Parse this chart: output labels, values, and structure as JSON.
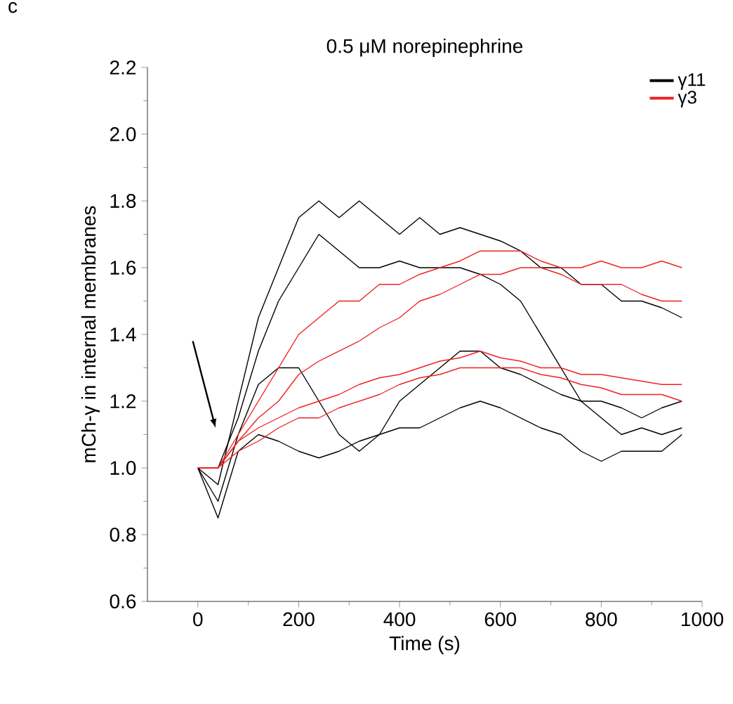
{
  "chart_data": {
    "type": "line",
    "title": "0.5 μM norepinephrine",
    "xlabel": "Time (s)",
    "ylabel": "mCh-γ in internal membranes",
    "annotations": [
      "c"
    ],
    "x": [
      0,
      40,
      80,
      120,
      160,
      200,
      240,
      280,
      320,
      360,
      400,
      440,
      480,
      520,
      560,
      600,
      640,
      680,
      720,
      760,
      800,
      840,
      880,
      920,
      960
    ],
    "series": [
      {
        "name": "γ11",
        "color": "#000000",
        "values": [
          1.0,
          0.95,
          1.2,
          1.45,
          1.6,
          1.75,
          1.8,
          1.75,
          1.8,
          1.75,
          1.7,
          1.75,
          1.7,
          1.72,
          1.7,
          1.68,
          1.65,
          1.6,
          1.6,
          1.55,
          1.55,
          1.5,
          1.5,
          1.48,
          1.45
        ]
      },
      {
        "color": "#000000",
        "values": [
          1.0,
          1.0,
          1.15,
          1.35,
          1.5,
          1.6,
          1.7,
          1.65,
          1.6,
          1.6,
          1.62,
          1.6,
          1.6,
          1.6,
          1.58,
          1.55,
          1.5,
          1.4,
          1.3,
          1.2,
          1.15,
          1.1,
          1.12,
          1.1,
          1.12
        ]
      },
      {
        "color": "#000000",
        "values": [
          1.0,
          0.9,
          1.1,
          1.25,
          1.3,
          1.3,
          1.2,
          1.1,
          1.05,
          1.1,
          1.2,
          1.25,
          1.3,
          1.35,
          1.35,
          1.3,
          1.28,
          1.25,
          1.22,
          1.2,
          1.2,
          1.18,
          1.15,
          1.18,
          1.2
        ]
      },
      {
        "color": "#000000",
        "values": [
          1.0,
          0.85,
          1.05,
          1.1,
          1.08,
          1.05,
          1.03,
          1.05,
          1.08,
          1.1,
          1.12,
          1.12,
          1.15,
          1.18,
          1.2,
          1.18,
          1.15,
          1.12,
          1.1,
          1.05,
          1.02,
          1.05,
          1.05,
          1.05,
          1.1
        ]
      },
      {
        "name": "γ3",
        "color": "#ee2222",
        "values": [
          1.0,
          1.0,
          1.1,
          1.2,
          1.3,
          1.4,
          1.45,
          1.5,
          1.5,
          1.55,
          1.55,
          1.58,
          1.6,
          1.62,
          1.65,
          1.65,
          1.65,
          1.62,
          1.6,
          1.6,
          1.62,
          1.6,
          1.6,
          1.62,
          1.6
        ]
      },
      {
        "color": "#ee2222",
        "values": [
          1.0,
          1.0,
          1.08,
          1.15,
          1.2,
          1.28,
          1.32,
          1.35,
          1.38,
          1.42,
          1.45,
          1.5,
          1.52,
          1.55,
          1.58,
          1.58,
          1.6,
          1.6,
          1.58,
          1.55,
          1.55,
          1.55,
          1.52,
          1.5,
          1.5
        ]
      },
      {
        "color": "#ee2222",
        "values": [
          1.0,
          1.0,
          1.08,
          1.12,
          1.15,
          1.18,
          1.2,
          1.22,
          1.25,
          1.27,
          1.28,
          1.3,
          1.32,
          1.33,
          1.35,
          1.33,
          1.32,
          1.3,
          1.3,
          1.28,
          1.28,
          1.27,
          1.26,
          1.25,
          1.25
        ]
      },
      {
        "color": "#ee2222",
        "values": [
          1.0,
          1.0,
          1.05,
          1.08,
          1.12,
          1.15,
          1.15,
          1.18,
          1.2,
          1.22,
          1.25,
          1.27,
          1.28,
          1.3,
          1.3,
          1.3,
          1.3,
          1.28,
          1.27,
          1.25,
          1.24,
          1.22,
          1.22,
          1.22,
          1.2
        ]
      }
    ],
    "xlim": [
      -100,
      1000
    ],
    "xticks": [
      0,
      200,
      400,
      600,
      800,
      1000
    ],
    "ylim": [
      0.6,
      2.2
    ],
    "yticks": [
      0.6,
      0.8,
      {
        "value": 1.0,
        "label": "1.0"
      },
      1.2,
      1.4,
      1.6,
      1.8,
      {
        "value": 2.0,
        "label": "2.0"
      },
      2.2
    ],
    "legend": "top right",
    "line_style": "solid"
  }
}
